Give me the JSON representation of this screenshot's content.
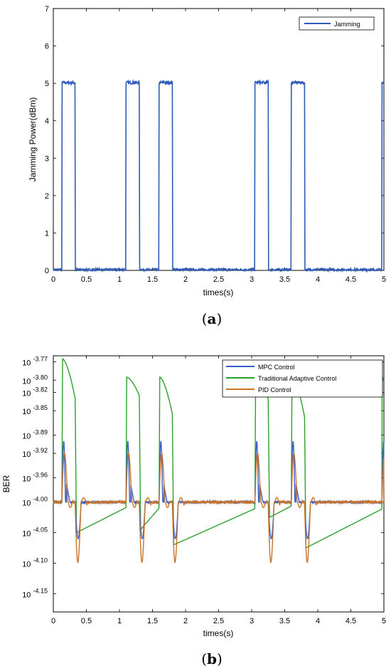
{
  "chart_data": [
    {
      "type": "line",
      "panel_label": "a",
      "xlabel": "times(s)",
      "ylabel": "Jamming Power(dBm)",
      "xlim": [
        0,
        5
      ],
      "ylim": [
        0,
        7
      ],
      "xticks": [
        "0",
        "0.5",
        "1",
        "1.5",
        "2",
        "2.5",
        "3",
        "3.5",
        "4",
        "4.5",
        "5"
      ],
      "yticks": [
        "0",
        "1",
        "2",
        "3",
        "4",
        "5",
        "6",
        "7"
      ],
      "legend_position": "top-right",
      "series": [
        {
          "name": "Jamming",
          "color": "#2E5BB8",
          "baseline": 0.02,
          "high": 5.02,
          "pulses": [
            [
              0.13,
              0.33
            ],
            [
              1.1,
              1.3
            ],
            [
              1.6,
              1.8
            ],
            [
              3.05,
              3.25
            ],
            [
              3.6,
              3.8
            ],
            [
              4.97,
              5.0
            ]
          ]
        }
      ]
    },
    {
      "type": "line",
      "panel_label": "b",
      "xlabel": "times(s)",
      "ylabel": "BER",
      "xlim": [
        0,
        5
      ],
      "y_scale": "log10",
      "ylim_exponent": [
        -4.18,
        -3.76
      ],
      "xticks": [
        "0",
        "0.5",
        "1",
        "1.5",
        "2",
        "2.5",
        "3",
        "3.5",
        "4",
        "4.5",
        "5"
      ],
      "yticks": [
        {
          "base": "10",
          "exp": "-3.77",
          "value": -3.77
        },
        {
          "base": "10",
          "exp": "-3.80",
          "value": -3.8
        },
        {
          "base": "10",
          "exp": "-3.82",
          "value": -3.82
        },
        {
          "base": "10",
          "exp": "-3.85",
          "value": -3.85
        },
        {
          "base": "10",
          "exp": "-3.89",
          "value": -3.89
        },
        {
          "base": "10",
          "exp": "-3.92",
          "value": -3.92
        },
        {
          "base": "10",
          "exp": "-3.96",
          "value": -3.96
        },
        {
          "base": "10",
          "exp": "-4.00",
          "value": -4.0
        },
        {
          "base": "10",
          "exp": "-4.05",
          "value": -4.05
        },
        {
          "base": "10",
          "exp": "-4.10",
          "value": -4.1
        },
        {
          "base": "10",
          "exp": "-4.15",
          "value": -4.15
        }
      ],
      "legend_position": "top-right",
      "series": [
        {
          "name": "MPC Control",
          "color": "#3B5FC9"
        },
        {
          "name": "Traditional Adaptive Control",
          "color": "#2CA02C"
        },
        {
          "name": "PID Control",
          "color": "#C8732A"
        }
      ],
      "pulses": [
        [
          0.13,
          0.33
        ],
        [
          1.1,
          1.3
        ],
        [
          1.6,
          1.8
        ],
        [
          3.05,
          3.25
        ],
        [
          3.6,
          3.8
        ],
        [
          4.97,
          5.0
        ]
      ],
      "steady_value": -4.0,
      "adaptive_peaks": [
        -3.765,
        -3.795,
        -3.795,
        -3.795,
        -3.795,
        -3.795
      ],
      "adaptive_pulse_end": [
        -3.83,
        -3.825,
        -3.855,
        -3.83,
        -3.86,
        -3.8
      ],
      "adaptive_troughs": [
        -4.05,
        -4.045,
        -4.07,
        -4.025,
        -4.075,
        -4.0
      ],
      "pid_peak": -3.89,
      "pid_trough": -4.125,
      "mpc_peak": -3.9,
      "mpc_trough": -4.06
    }
  ]
}
